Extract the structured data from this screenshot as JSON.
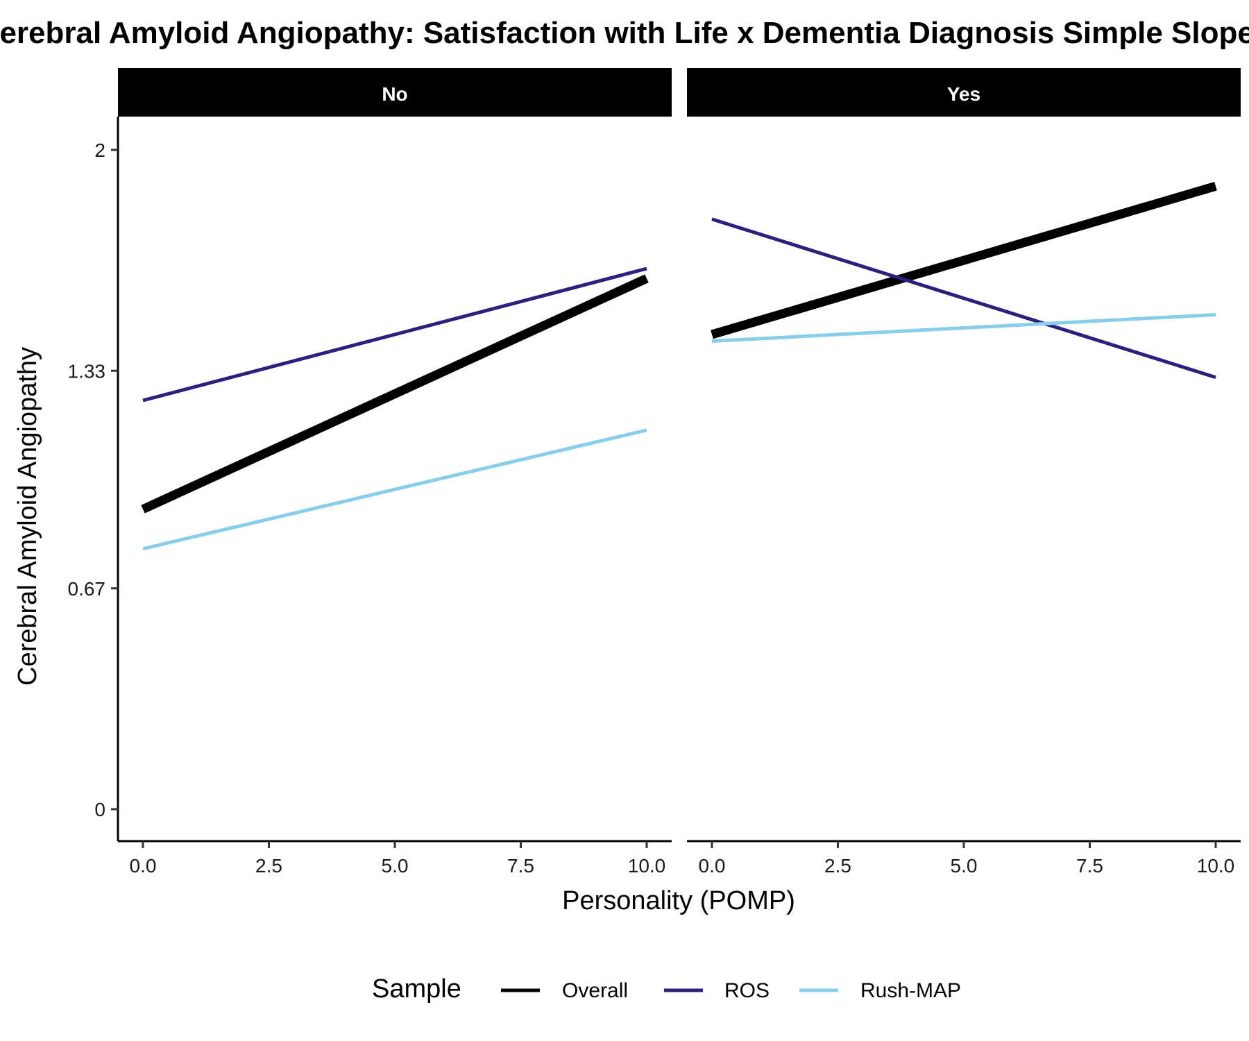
{
  "chart_data": {
    "type": "line",
    "title": "Cerebral Amyloid Angiopathy: Satisfaction with Life x Dementia Diagnosis Simple Slopes",
    "xlabel": "Personality (POMP)",
    "ylabel": "Cerebral Amyloid Angiopathy",
    "x_ticks": [
      "0.0",
      "2.5",
      "5.0",
      "7.5",
      "10.0"
    ],
    "x_tick_values": [
      0,
      2.5,
      5,
      7.5,
      10
    ],
    "y_ticks": [
      "0",
      "0.67",
      "1.33",
      "2"
    ],
    "y_tick_values": [
      0,
      0.67,
      1.33,
      2
    ],
    "xlim": [
      -0.5,
      10.5
    ],
    "ylim": [
      -0.1,
      2.1
    ],
    "grid": false,
    "legend": {
      "title": "Sample",
      "position": "bottom"
    },
    "panels": [
      {
        "label": "No",
        "series": [
          {
            "name": "Overall",
            "color": "#000000",
            "x": [
              0,
              10
            ],
            "values": [
              0.91,
              1.61
            ]
          },
          {
            "name": "ROS",
            "color": "#2c1f7e",
            "x": [
              0,
              10
            ],
            "values": [
              1.24,
              1.64
            ]
          },
          {
            "name": "Rush-MAP",
            "color": "#87ceeb",
            "x": [
              0,
              10
            ],
            "values": [
              0.79,
              1.15
            ]
          }
        ]
      },
      {
        "label": "Yes",
        "series": [
          {
            "name": "Overall",
            "color": "#000000",
            "x": [
              0,
              10
            ],
            "values": [
              1.44,
              1.89
            ]
          },
          {
            "name": "ROS",
            "color": "#2c1f7e",
            "x": [
              0,
              10
            ],
            "values": [
              1.79,
              1.31
            ]
          },
          {
            "name": "Rush-MAP",
            "color": "#87ceeb",
            "x": [
              0,
              10
            ],
            "values": [
              1.42,
              1.5
            ]
          }
        ]
      }
    ]
  }
}
